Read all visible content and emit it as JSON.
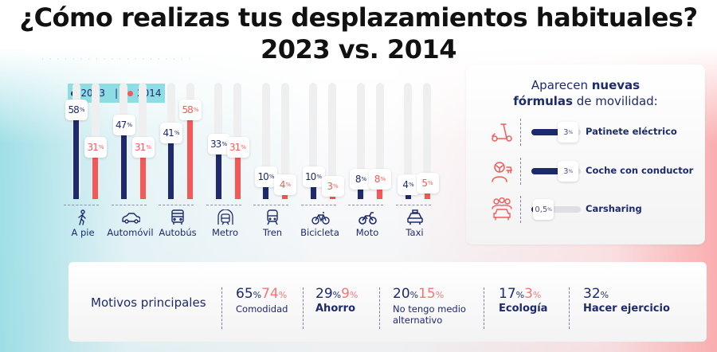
{
  "title": {
    "line1": "¿Cómo realizas tus desplazamientos habituales?",
    "line2": "2023 vs. 2014"
  },
  "colors": {
    "series_2023": "#1d2a6b",
    "series_2014": "#f25a5a",
    "legend_bg": "#8fdde4"
  },
  "chart_data": {
    "type": "bar",
    "title": "¿Cómo realizas tus desplazamientos habituales? 2023 vs. 2014",
    "xlabel": "",
    "ylabel": "",
    "ylim": [
      0,
      100
    ],
    "legend_position": "top-left",
    "categories": [
      "A pie",
      "Automóvil",
      "Autobús",
      "Metro",
      "Tren",
      "Bicicleta",
      "Moto",
      "Taxi"
    ],
    "category_icons": [
      "walking-person-icon",
      "car-icon",
      "bus-icon",
      "metro-icon",
      "train-icon",
      "bicycle-icon",
      "motorcycle-icon",
      "taxi-icon"
    ],
    "series": [
      {
        "name": "2023",
        "values": [
          58,
          47,
          41,
          33,
          10,
          10,
          8,
          4
        ]
      },
      {
        "name": "2014",
        "values": [
          31,
          31,
          58,
          31,
          4,
          3,
          8,
          5
        ]
      }
    ],
    "value_suffix": "%"
  },
  "legend": {
    "items": [
      {
        "label": "2023"
      },
      {
        "label": "2014"
      }
    ],
    "separator": "|"
  },
  "new_formulas": {
    "title_regular_1": "Aparecen ",
    "title_bold_1": "nuevas",
    "title_bold_2": "fórmulas",
    "title_regular_2": " de movilidad:",
    "items": [
      {
        "label": "Patinete eléctrico",
        "value": "3",
        "value_num": 3,
        "icon": "scooter-icon"
      },
      {
        "label": "Coche con conductor",
        "value": "3",
        "value_num": 3,
        "icon": "ride-hailing-icon"
      },
      {
        "label": "Carsharing",
        "value": "0,5",
        "value_num": 0.5,
        "icon": "carsharing-icon"
      }
    ],
    "suffix": "%"
  },
  "motives": {
    "title": "Motivos principales",
    "items": [
      {
        "v2023": "65",
        "v2014": "74",
        "label": "Comodidad",
        "bold": false
      },
      {
        "v2023": "29",
        "v2014": "9",
        "label": "Ahorro",
        "bold": true
      },
      {
        "v2023": "20",
        "v2014": "15",
        "label": "No tengo medio alternativo",
        "bold": false
      },
      {
        "v2023": "17",
        "v2014": "3",
        "label": "Ecología",
        "bold": true
      },
      {
        "v2023": "32",
        "v2014": null,
        "label": "Hacer ejercicio",
        "bold": true
      }
    ],
    "suffix": "%"
  }
}
